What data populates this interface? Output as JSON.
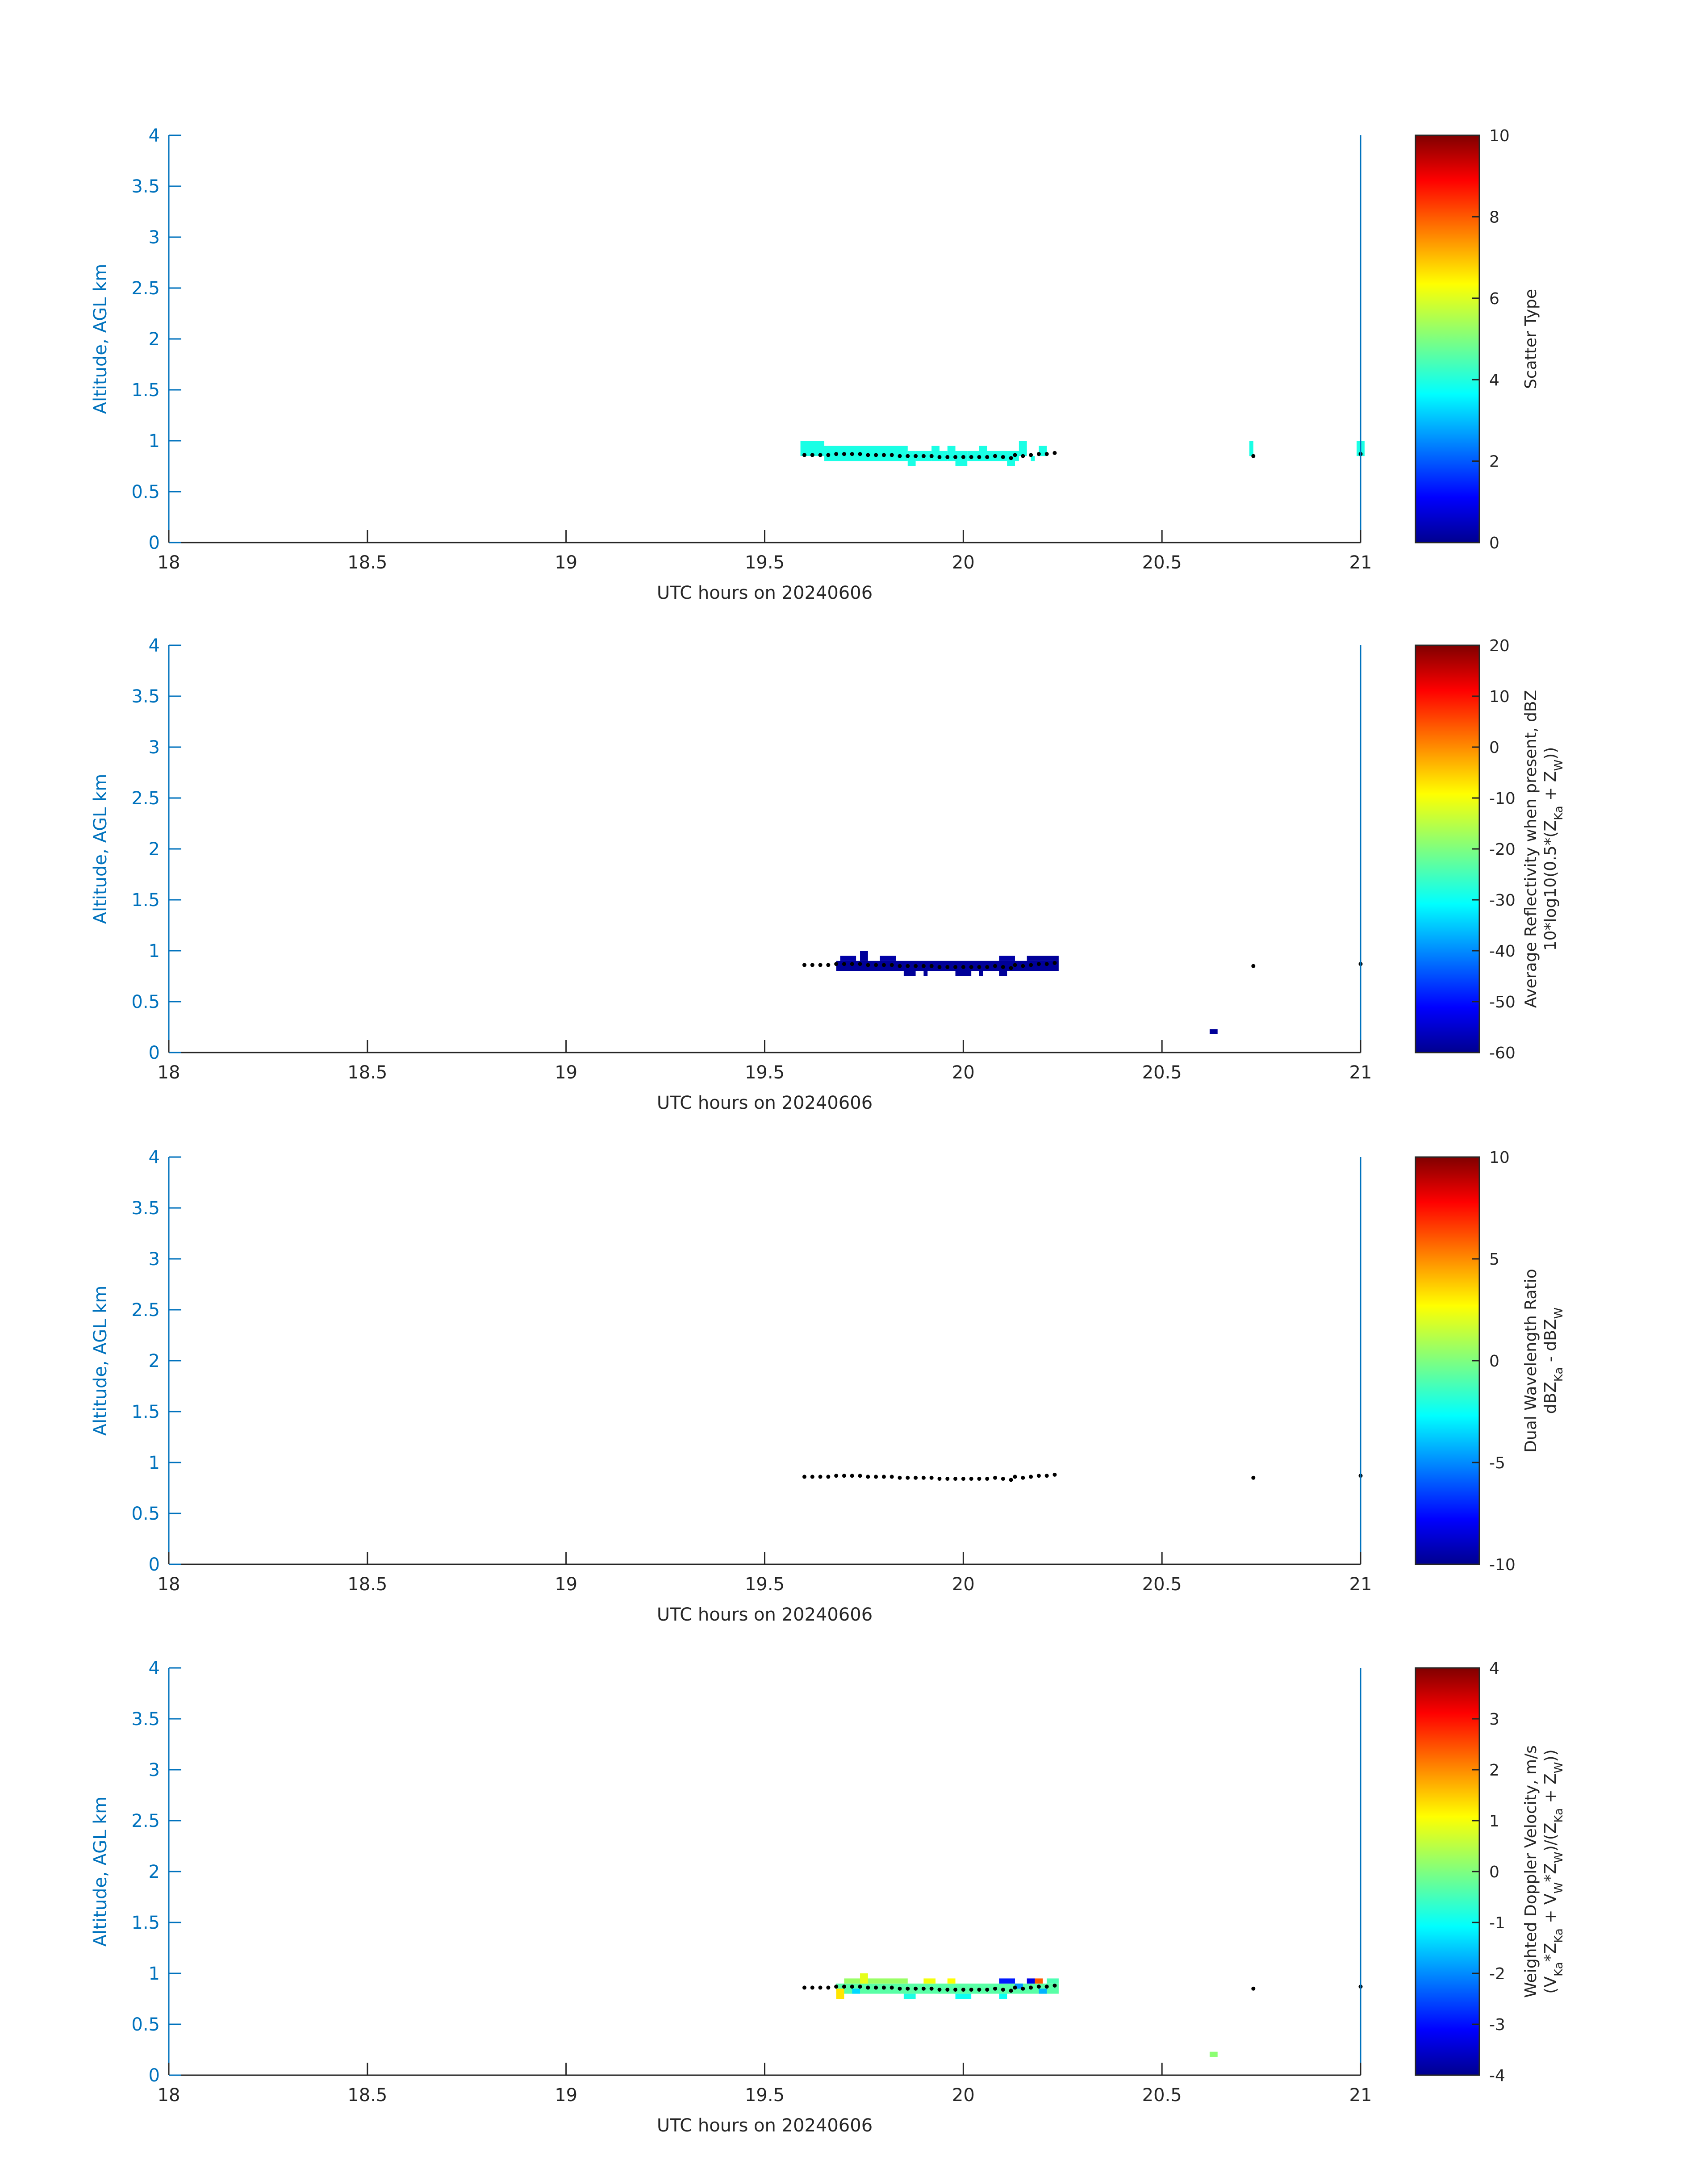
{
  "chart_data": [
    {
      "type": "heatmap",
      "xlabel": "UTC hours on 20240606",
      "ylabel": "Altitude, AGL km",
      "xlim": [
        18,
        21
      ],
      "ylim": [
        0,
        4
      ],
      "xticks": [
        "18",
        "18.5",
        "19",
        "19.5",
        "20",
        "20.5",
        "21"
      ],
      "yticks": [
        "0",
        "0.5",
        "1",
        "1.5",
        "2",
        "2.5",
        "3",
        "3.5",
        "4"
      ],
      "colorbar": {
        "label_lines": [
          "Scatter Type"
        ],
        "lim": [
          0,
          10
        ],
        "ticks": [
          "0",
          "2",
          "4",
          "6",
          "8",
          "10"
        ],
        "colormap": "jet"
      },
      "cells": [
        {
          "x0": 19.59,
          "x1": 19.65,
          "y0": 0.85,
          "y1": 1.0,
          "v": 4
        },
        {
          "x0": 19.65,
          "x1": 19.86,
          "y0": 0.8,
          "y1": 0.95,
          "v": 4
        },
        {
          "x0": 19.86,
          "x1": 19.88,
          "y0": 0.75,
          "y1": 0.9,
          "v": 4
        },
        {
          "x0": 19.88,
          "x1": 19.92,
          "y0": 0.8,
          "y1": 0.9,
          "v": 4
        },
        {
          "x0": 19.92,
          "x1": 19.94,
          "y0": 0.8,
          "y1": 0.95,
          "v": 4
        },
        {
          "x0": 19.94,
          "x1": 19.96,
          "y0": 0.8,
          "y1": 0.9,
          "v": 4
        },
        {
          "x0": 19.96,
          "x1": 19.98,
          "y0": 0.8,
          "y1": 0.95,
          "v": 4
        },
        {
          "x0": 19.98,
          "x1": 20.01,
          "y0": 0.75,
          "y1": 0.9,
          "v": 4
        },
        {
          "x0": 20.01,
          "x1": 20.04,
          "y0": 0.8,
          "y1": 0.9,
          "v": 4
        },
        {
          "x0": 20.04,
          "x1": 20.06,
          "y0": 0.8,
          "y1": 0.95,
          "v": 4
        },
        {
          "x0": 20.06,
          "x1": 20.11,
          "y0": 0.8,
          "y1": 0.9,
          "v": 4
        },
        {
          "x0": 20.11,
          "x1": 20.13,
          "y0": 0.75,
          "y1": 0.9,
          "v": 4
        },
        {
          "x0": 20.13,
          "x1": 20.14,
          "y0": 0.8,
          "y1": 0.9,
          "v": 4
        },
        {
          "x0": 20.14,
          "x1": 20.16,
          "y0": 0.85,
          "y1": 1.0,
          "v": 4
        },
        {
          "x0": 20.17,
          "x1": 20.18,
          "y0": 0.8,
          "y1": 0.85,
          "v": 4
        },
        {
          "x0": 20.19,
          "x1": 20.21,
          "y0": 0.85,
          "y1": 0.95,
          "v": 4
        },
        {
          "x0": 20.72,
          "x1": 20.73,
          "y0": 0.85,
          "y1": 1.0,
          "v": 4
        },
        {
          "x0": 20.99,
          "x1": 21.01,
          "y0": 0.85,
          "y1": 1.0,
          "v": 4
        }
      ]
    },
    {
      "type": "heatmap",
      "xlabel": "UTC hours on 20240606",
      "ylabel": "Altitude, AGL km",
      "xlim": [
        18,
        21
      ],
      "ylim": [
        0,
        4
      ],
      "xticks": [
        "18",
        "18.5",
        "19",
        "19.5",
        "20",
        "20.5",
        "21"
      ],
      "yticks": [
        "0",
        "0.5",
        "1",
        "1.5",
        "2",
        "2.5",
        "3",
        "3.5",
        "4"
      ],
      "colorbar": {
        "label_lines": [
          "Average Reflectivity when present, dBZ",
          "10*log10(0.5*(Z_Ka + Z_W))"
        ],
        "lim": [
          -60,
          20
        ],
        "ticks": [
          "-60",
          "-50",
          "-40",
          "-30",
          "-20",
          "-10",
          "0",
          "10",
          "20"
        ],
        "colormap": "jet"
      },
      "cells": [
        {
          "x0": 19.68,
          "x1": 20.24,
          "y0": 0.8,
          "y1": 0.9,
          "v": -58
        },
        {
          "x0": 19.69,
          "x1": 19.73,
          "y0": 0.9,
          "y1": 0.95,
          "v": -57
        },
        {
          "x0": 19.74,
          "x1": 19.76,
          "y0": 0.9,
          "y1": 1.0,
          "v": -58
        },
        {
          "x0": 19.79,
          "x1": 19.83,
          "y0": 0.9,
          "y1": 0.95,
          "v": -57
        },
        {
          "x0": 19.85,
          "x1": 19.88,
          "y0": 0.75,
          "y1": 0.8,
          "v": -58
        },
        {
          "x0": 19.9,
          "x1": 19.91,
          "y0": 0.75,
          "y1": 0.8,
          "v": -58
        },
        {
          "x0": 19.98,
          "x1": 20.02,
          "y0": 0.75,
          "y1": 0.8,
          "v": -58
        },
        {
          "x0": 20.04,
          "x1": 20.05,
          "y0": 0.75,
          "y1": 0.8,
          "v": -58
        },
        {
          "x0": 20.09,
          "x1": 20.11,
          "y0": 0.75,
          "y1": 0.8,
          "v": -58
        },
        {
          "x0": 20.09,
          "x1": 20.13,
          "y0": 0.9,
          "y1": 0.95,
          "v": -57
        },
        {
          "x0": 20.16,
          "x1": 20.24,
          "y0": 0.9,
          "y1": 0.95,
          "v": -58
        },
        {
          "x0": 20.62,
          "x1": 20.64,
          "y0": 0.18,
          "y1": 0.23,
          "v": -58
        }
      ]
    },
    {
      "type": "heatmap",
      "xlabel": "UTC hours on 20240606",
      "ylabel": "Altitude, AGL km",
      "xlim": [
        18,
        21
      ],
      "ylim": [
        0,
        4
      ],
      "xticks": [
        "18",
        "18.5",
        "19",
        "19.5",
        "20",
        "20.5",
        "21"
      ],
      "yticks": [
        "0",
        "0.5",
        "1",
        "1.5",
        "2",
        "2.5",
        "3",
        "3.5",
        "4"
      ],
      "colorbar": {
        "label_lines": [
          "Dual Wavelength Ratio",
          "dBZ_Ka - dBZ_W"
        ],
        "lim": [
          -10,
          10
        ],
        "ticks": [
          "-10",
          "-5",
          "0",
          "5",
          "10"
        ],
        "colormap": "jet"
      },
      "cells": []
    },
    {
      "type": "heatmap",
      "xlabel": "UTC hours on 20240606",
      "ylabel": "Altitude, AGL km",
      "xlim": [
        18,
        21
      ],
      "ylim": [
        0,
        4
      ],
      "xticks": [
        "18",
        "18.5",
        "19",
        "19.5",
        "20",
        "20.5",
        "21"
      ],
      "yticks": [
        "0",
        "0.5",
        "1",
        "1.5",
        "2",
        "2.5",
        "3",
        "3.5",
        "4"
      ],
      "colorbar": {
        "label_lines": [
          "Weighted Doppler Velocity, m/s",
          "(V_Ka*Z_Ka + V_W*Z_W)/(Z_Ka + Z_W))"
        ],
        "lim": [
          -4,
          4
        ],
        "ticks": [
          "-4",
          "-3",
          "-2",
          "-1",
          "0",
          "1",
          "2",
          "3",
          "4"
        ],
        "colormap": "jet"
      },
      "cells": [
        {
          "x0": 19.68,
          "x1": 20.24,
          "y0": 0.8,
          "y1": 0.9,
          "v": -0.3
        },
        {
          "x0": 19.7,
          "x1": 19.86,
          "y0": 0.9,
          "y1": 0.95,
          "v": 0.2
        },
        {
          "x0": 19.68,
          "x1": 19.7,
          "y0": 0.75,
          "y1": 0.85,
          "v": 1.2
        },
        {
          "x0": 19.74,
          "x1": 19.76,
          "y0": 0.9,
          "y1": 1.0,
          "v": 0.8
        },
        {
          "x0": 19.72,
          "x1": 19.74,
          "y0": 0.8,
          "y1": 0.85,
          "v": -1.3
        },
        {
          "x0": 19.9,
          "x1": 19.93,
          "y0": 0.9,
          "y1": 0.95,
          "v": 0.9
        },
        {
          "x0": 19.96,
          "x1": 19.98,
          "y0": 0.9,
          "y1": 0.95,
          "v": 1.0
        },
        {
          "x0": 19.85,
          "x1": 19.88,
          "y0": 0.75,
          "y1": 0.8,
          "v": -0.8
        },
        {
          "x0": 19.98,
          "x1": 20.02,
          "y0": 0.75,
          "y1": 0.8,
          "v": -0.9
        },
        {
          "x0": 20.09,
          "x1": 20.11,
          "y0": 0.75,
          "y1": 0.8,
          "v": -0.9
        },
        {
          "x0": 20.09,
          "x1": 20.13,
          "y0": 0.9,
          "y1": 0.95,
          "v": -2.8
        },
        {
          "x0": 20.13,
          "x1": 20.15,
          "y0": 0.85,
          "y1": 0.9,
          "v": -1.8
        },
        {
          "x0": 20.16,
          "x1": 20.18,
          "y0": 0.9,
          "y1": 0.95,
          "v": -3.2
        },
        {
          "x0": 20.18,
          "x1": 20.2,
          "y0": 0.9,
          "y1": 0.95,
          "v": 2.3
        },
        {
          "x0": 20.19,
          "x1": 20.21,
          "y0": 0.8,
          "y1": 0.85,
          "v": -1.6
        },
        {
          "x0": 20.21,
          "x1": 20.24,
          "y0": 0.9,
          "y1": 0.95,
          "v": -0.4
        },
        {
          "x0": 20.62,
          "x1": 20.64,
          "y0": 0.18,
          "y1": 0.23,
          "v": 0.1
        }
      ]
    }
  ],
  "cloud_base_points": [
    [
      19.6,
      0.86
    ],
    [
      19.62,
      0.86
    ],
    [
      19.64,
      0.86
    ],
    [
      19.66,
      0.86
    ],
    [
      19.68,
      0.87
    ],
    [
      19.7,
      0.87
    ],
    [
      19.72,
      0.87
    ],
    [
      19.74,
      0.87
    ],
    [
      19.76,
      0.86
    ],
    [
      19.78,
      0.86
    ],
    [
      19.8,
      0.86
    ],
    [
      19.82,
      0.86
    ],
    [
      19.84,
      0.85
    ],
    [
      19.86,
      0.85
    ],
    [
      19.88,
      0.85
    ],
    [
      19.9,
      0.85
    ],
    [
      19.92,
      0.85
    ],
    [
      19.94,
      0.84
    ],
    [
      19.96,
      0.84
    ],
    [
      19.98,
      0.84
    ],
    [
      20.0,
      0.84
    ],
    [
      20.02,
      0.84
    ],
    [
      20.04,
      0.84
    ],
    [
      20.06,
      0.84
    ],
    [
      20.08,
      0.85
    ],
    [
      20.1,
      0.84
    ],
    [
      20.12,
      0.83
    ],
    [
      20.13,
      0.86
    ],
    [
      20.15,
      0.85
    ],
    [
      20.17,
      0.86
    ],
    [
      20.19,
      0.87
    ],
    [
      20.21,
      0.87
    ],
    [
      20.23,
      0.88
    ],
    [
      20.73,
      0.85
    ],
    [
      21.0,
      0.87
    ]
  ]
}
